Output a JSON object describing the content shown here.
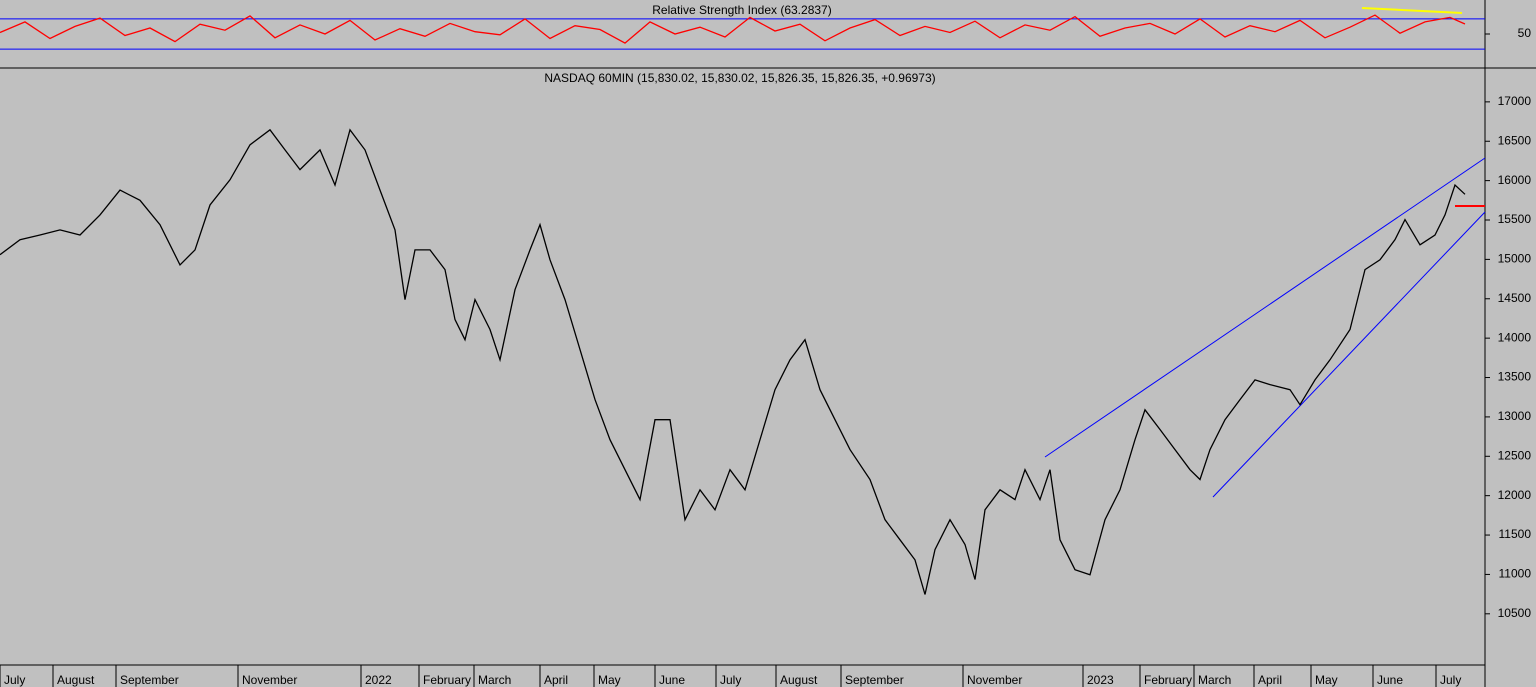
{
  "chart_data": [
    {
      "type": "line",
      "title": "Relative Strength Index (63.2837)",
      "color": "#ff0000",
      "x": [
        0,
        25,
        50,
        75,
        100,
        125,
        150,
        175,
        200,
        225,
        250,
        275,
        300,
        325,
        350,
        375,
        400,
        425,
        450,
        475,
        500,
        525,
        550,
        575,
        600,
        625,
        650,
        675,
        700,
        725,
        750,
        775,
        800,
        825,
        850,
        875,
        900,
        925,
        950,
        975,
        1000,
        1025,
        1050,
        1075,
        1100,
        1125,
        1150,
        1175,
        1200,
        1225,
        1250,
        1275,
        1300,
        1325,
        1350,
        1375,
        1400,
        1425,
        1450,
        1465
      ],
      "values": [
        52,
        66,
        44,
        60,
        71,
        48,
        58,
        40,
        63,
        55,
        74,
        45,
        62,
        50,
        68,
        42,
        57,
        47,
        64,
        53,
        49,
        70,
        44,
        61,
        56,
        38,
        66,
        50,
        59,
        46,
        72,
        54,
        63,
        41,
        58,
        69,
        48,
        60,
        52,
        67,
        45,
        62,
        55,
        73,
        47,
        58,
        64,
        50,
        70,
        46,
        61,
        53,
        68,
        45,
        59,
        75,
        51,
        66,
        72,
        63.2837
      ],
      "xlim": [
        0,
        1485
      ],
      "ylim": [
        5,
        95
      ],
      "yticks": [
        50
      ],
      "bands": [
        30,
        70
      ],
      "band_color": "#0000ff"
    },
    {
      "type": "line",
      "title": "NASDAQ 60MIN (15,830.02, 15,830.02, 15,826.35, 15,826.35, +0.96973)",
      "color": "#000000",
      "x": [
        0,
        20,
        40,
        60,
        80,
        100,
        120,
        140,
        160,
        180,
        195,
        210,
        230,
        250,
        270,
        285,
        300,
        320,
        335,
        350,
        365,
        380,
        395,
        405,
        415,
        430,
        445,
        455,
        465,
        475,
        490,
        500,
        515,
        530,
        540,
        550,
        565,
        580,
        595,
        610,
        625,
        640,
        655,
        670,
        685,
        700,
        715,
        730,
        745,
        760,
        775,
        790,
        805,
        820,
        835,
        850,
        870,
        885,
        900,
        915,
        925,
        935,
        950,
        965,
        975,
        985,
        1000,
        1015,
        1025,
        1040,
        1050,
        1060,
        1075,
        1090,
        1105,
        1120,
        1135,
        1145,
        1160,
        1175,
        1190,
        1200,
        1210,
        1225,
        1240,
        1255,
        1270,
        1290,
        1300,
        1315,
        1330,
        1350,
        1365,
        1380,
        1395,
        1405,
        1420,
        1435,
        1445,
        1455,
        1465
      ],
      "values": [
        15060,
        15250,
        15310,
        15375,
        15310,
        15565,
        15880,
        15750,
        15440,
        14930,
        15120,
        15690,
        16010,
        16455,
        16645,
        16390,
        16140,
        16390,
        15945,
        16645,
        16390,
        15880,
        15375,
        14490,
        15120,
        15120,
        14870,
        14235,
        13980,
        14490,
        14110,
        13725,
        14615,
        15120,
        15440,
        14995,
        14490,
        13855,
        13220,
        12710,
        12330,
        11950,
        12965,
        12965,
        11695,
        12075,
        11820,
        12330,
        12075,
        12710,
        13345,
        13725,
        13980,
        13345,
        12965,
        12585,
        12205,
        11695,
        11440,
        11185,
        10745,
        11315,
        11695,
        11380,
        10935,
        11820,
        12075,
        11950,
        12330,
        11950,
        12330,
        11440,
        11060,
        10995,
        11695,
        12075,
        12710,
        13090,
        12840,
        12585,
        12330,
        12205,
        12585,
        12965,
        13220,
        13470,
        13410,
        13345,
        13155,
        13470,
        13725,
        14110,
        14870,
        14995,
        15250,
        15505,
        15185,
        15310,
        15565,
        15945,
        15826.35
      ],
      "xlim": [
        0,
        1485
      ],
      "ylim": [
        9850,
        17430
      ],
      "yticks": [
        10500,
        11000,
        11500,
        12000,
        12500,
        13000,
        13500,
        14000,
        14500,
        15000,
        15500,
        16000,
        16500,
        17000
      ],
      "xticks": [
        {
          "value": 0,
          "label": "July"
        },
        {
          "value": 53,
          "label": "August"
        },
        {
          "value": 116,
          "label": "September"
        },
        {
          "value": 238,
          "label": "November"
        },
        {
          "value": 361,
          "label": "2022"
        },
        {
          "value": 419,
          "label": "February"
        },
        {
          "value": 474,
          "label": "March"
        },
        {
          "value": 540,
          "label": "April"
        },
        {
          "value": 594,
          "label": "May"
        },
        {
          "value": 655,
          "label": "June"
        },
        {
          "value": 716,
          "label": "July"
        },
        {
          "value": 776,
          "label": "August"
        },
        {
          "value": 841,
          "label": "September"
        },
        {
          "value": 963,
          "label": "November"
        },
        {
          "value": 1083,
          "label": "2023"
        },
        {
          "value": 1140,
          "label": "February"
        },
        {
          "value": 1194,
          "label": "March"
        },
        {
          "value": 1254,
          "label": "April"
        },
        {
          "value": 1311,
          "label": "May"
        },
        {
          "value": 1373,
          "label": "June"
        },
        {
          "value": 1436,
          "label": "July"
        }
      ]
    }
  ]
}
